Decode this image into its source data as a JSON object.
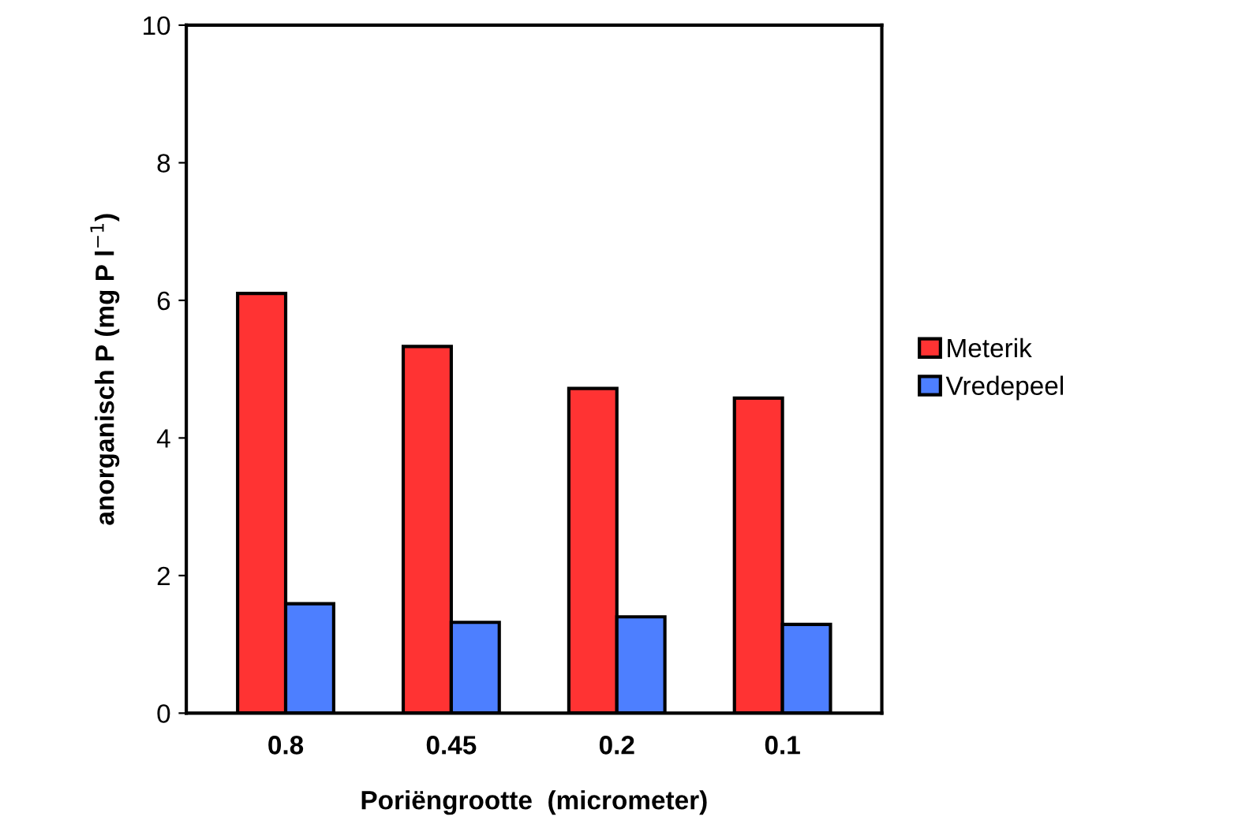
{
  "chart_data": {
    "type": "bar",
    "xlabel": "Poriëngrootte  (micrometer)",
    "ylabel": "anorganisch P (mg P l$^{−1}$)",
    "categories": [
      "0.8",
      "0.45",
      "0.2",
      "0.1"
    ],
    "series": [
      {
        "name": "Meterik",
        "color": "#ff3333",
        "values": [
          6.1,
          5.33,
          4.72,
          4.58
        ]
      },
      {
        "name": "Vredepeel",
        "color": "#4d7fff",
        "values": [
          1.59,
          1.32,
          1.4,
          1.29
        ]
      }
    ],
    "ylim": [
      0,
      10
    ],
    "yticks": [
      0,
      2,
      4,
      6,
      8,
      10
    ],
    "grid": false,
    "legend": "right"
  }
}
